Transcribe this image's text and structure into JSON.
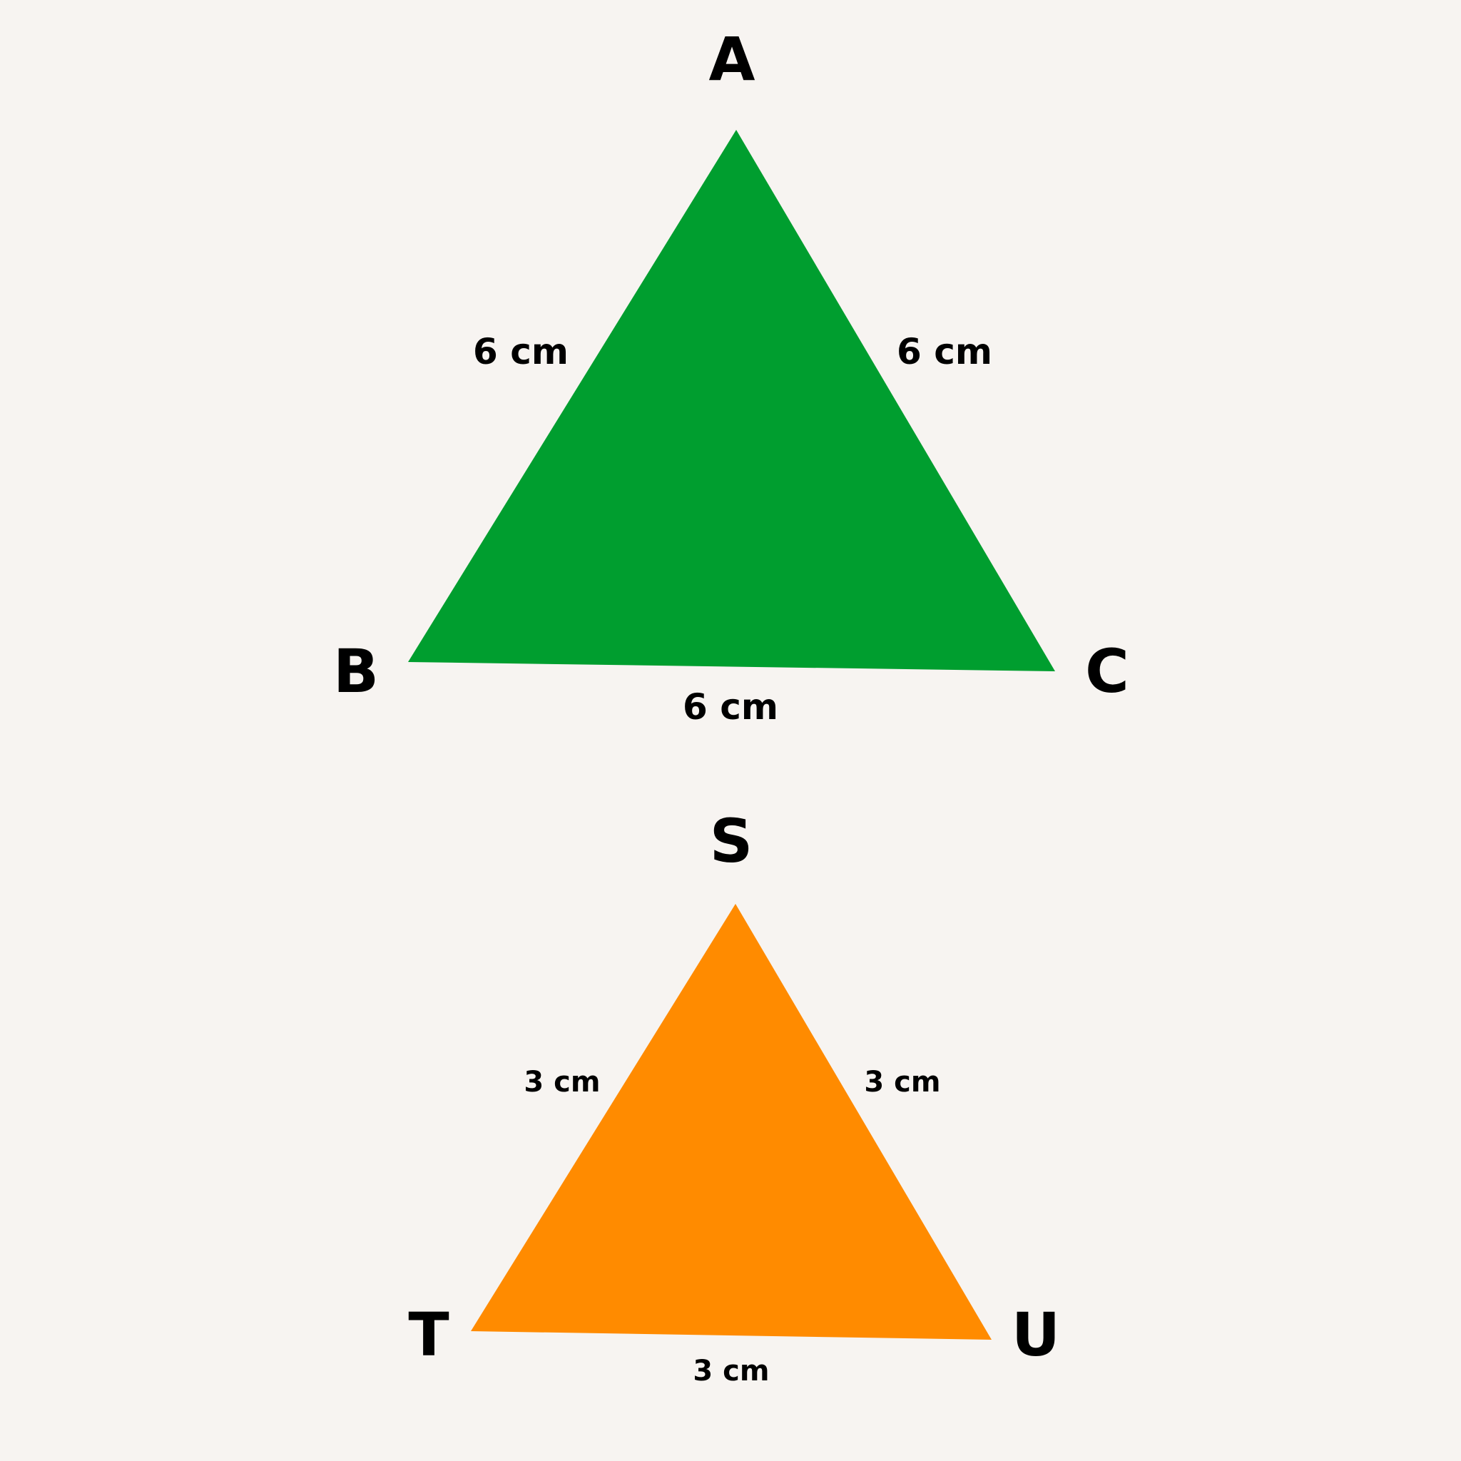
{
  "colors": {
    "background": "#f7f4f1",
    "large_triangle_fill": "#009e2f",
    "small_triangle_fill": "#ff8b00",
    "label": "#000000"
  },
  "large_triangle": {
    "vertices": {
      "top": "A",
      "left": "B",
      "right": "C"
    },
    "sides": {
      "left": "6 cm",
      "right": "6 cm",
      "base": "6 cm"
    }
  },
  "small_triangle": {
    "vertices": {
      "top": "S",
      "left": "T",
      "right": "U"
    },
    "sides": {
      "left": "3 cm",
      "right": "3 cm",
      "base": "3 cm"
    }
  }
}
